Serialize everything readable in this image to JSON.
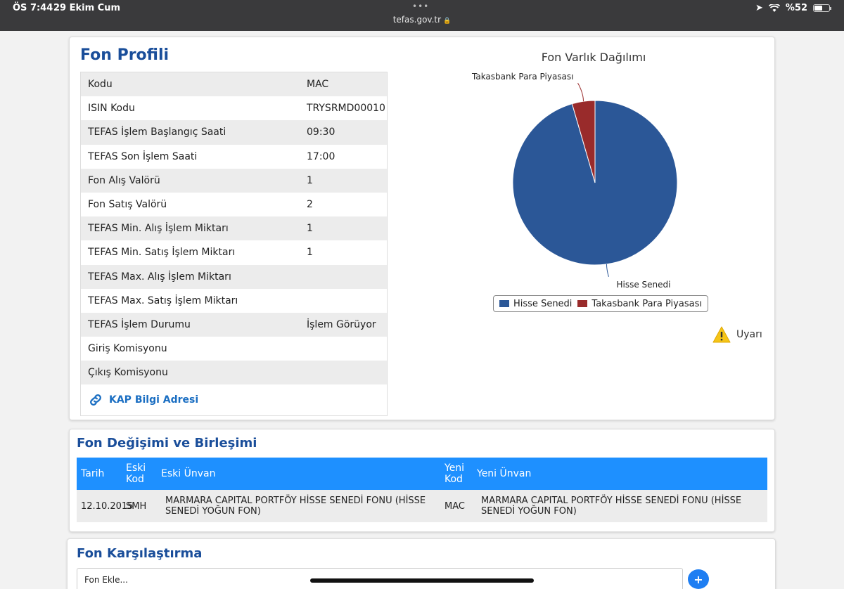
{
  "statusbar": {
    "time": "ÖS 7:44",
    "date": "29 Ekim Cum",
    "url": "tefas.gov.tr",
    "battery": "%52"
  },
  "profile": {
    "title": "Fon Profili",
    "rows": [
      {
        "key": "Kodu",
        "value": "MAC"
      },
      {
        "key": "ISIN Kodu",
        "value": "TRYSRMD00010"
      },
      {
        "key": "TEFAS İşlem Başlangıç Saati",
        "value": "09:30"
      },
      {
        "key": "TEFAS Son İşlem Saati",
        "value": "17:00"
      },
      {
        "key": "Fon Alış Valörü",
        "value": "1"
      },
      {
        "key": "Fon Satış Valörü",
        "value": "2"
      },
      {
        "key": "TEFAS Min. Alış İşlem Miktarı",
        "value": "1"
      },
      {
        "key": "TEFAS Min. Satış İşlem Miktarı",
        "value": "1"
      },
      {
        "key": "TEFAS Max. Alış İşlem Miktarı",
        "value": ""
      },
      {
        "key": "TEFAS Max. Satış İşlem Miktarı",
        "value": ""
      },
      {
        "key": "TEFAS İşlem Durumu",
        "value": "İşlem Görüyor"
      },
      {
        "key": "Giriş Komisyonu",
        "value": ""
      },
      {
        "key": "Çıkış Komisyonu",
        "value": ""
      }
    ],
    "kap_link": "KAP Bilgi Adresi"
  },
  "chart_data": {
    "type": "pie",
    "title": "Fon Varlık Dağılımı",
    "slices": [
      {
        "label": "Hisse Senedi",
        "value": 95.5,
        "color": "#2b5797"
      },
      {
        "label": "Takasbank Para Piyasası",
        "value": 4.5,
        "color": "#992b2b"
      }
    ],
    "legend_position": "bottom"
  },
  "warning": {
    "label": "Uyarı",
    "icon": "warning-icon"
  },
  "change": {
    "title": "Fon Değişimi ve Birleşimi",
    "headers": [
      "Tarih",
      "Eski Kod",
      "Eski Ünvan",
      "Yeni Kod",
      "Yeni Ünvan"
    ],
    "rows": [
      {
        "date": "12.10.2015",
        "old_code": "SMH",
        "old_name": "MARMARA CAPITAL PORTFÖY HİSSE SENEDİ FONU (HİSSE SENEDİ YOĞUN FON)",
        "new_code": "MAC",
        "new_name": "MARMARA CAPITAL PORTFÖY HİSSE SENEDİ FONU (HİSSE SENEDİ YOĞUN FON)"
      }
    ]
  },
  "compare": {
    "title": "Fon Karşılaştırma",
    "placeholder": "Fon Ekle...",
    "add_label": "+"
  }
}
